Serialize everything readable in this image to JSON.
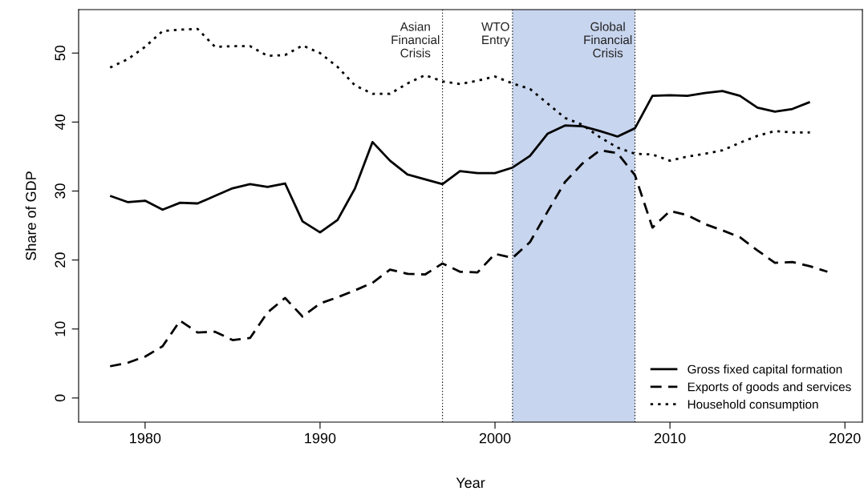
{
  "chart_data": {
    "type": "line",
    "xlabel": "Year",
    "ylabel": "Share of GDP",
    "xlim": [
      1976.2,
      2021.0
    ],
    "xticks": [
      1980,
      1990,
      2000,
      2010,
      2020
    ],
    "ylim": [
      -3.5,
      56.3
    ],
    "yticks": [
      0,
      10,
      20,
      30,
      40,
      50
    ],
    "grid": false,
    "legend": "bottom right",
    "x": [
      1978,
      1979,
      1980,
      1981,
      1982,
      1983,
      1984,
      1985,
      1986,
      1987,
      1988,
      1989,
      1990,
      1991,
      1992,
      1993,
      1994,
      1995,
      1996,
      1997,
      1998,
      1999,
      2000,
      2001,
      2002,
      2003,
      2004,
      2005,
      2006,
      2007,
      2008,
      2009,
      2010,
      2011,
      2012,
      2013,
      2014,
      2015,
      2016,
      2017,
      2018,
      2019
    ],
    "series": [
      {
        "name": "Gross fixed capital formation",
        "color": "#000000",
        "line_style": "solid",
        "values": [
          29.3,
          28.4,
          28.6,
          27.3,
          28.3,
          28.2,
          29.3,
          30.4,
          31.0,
          30.6,
          31.1,
          25.6,
          24.0,
          25.8,
          30.4,
          37.1,
          34.4,
          32.4,
          31.7,
          31.0,
          32.9,
          32.6,
          32.6,
          33.4,
          35.1,
          38.3,
          39.5,
          39.4,
          38.7,
          37.9,
          39.1,
          43.8,
          43.9,
          43.8,
          44.2,
          44.5,
          43.8,
          42.1,
          41.5,
          41.9,
          42.9,
          null
        ]
      },
      {
        "name": "Exports of goods and services",
        "color": "#000000",
        "line_style": "dashed",
        "values": [
          4.6,
          5.1,
          6.0,
          7.5,
          11.2,
          9.5,
          9.6,
          8.4,
          8.7,
          12.4,
          14.5,
          11.8,
          13.7,
          14.6,
          15.6,
          16.7,
          18.6,
          18.0,
          17.9,
          19.5,
          18.3,
          18.2,
          20.9,
          20.3,
          22.6,
          27.0,
          31.3,
          34.0,
          35.9,
          35.5,
          32.3,
          24.7,
          27.1,
          26.5,
          25.2,
          24.3,
          23.3,
          21.4,
          19.6,
          19.7,
          19.1,
          18.3
        ]
      },
      {
        "name": "Household consumption",
        "color": "#000000",
        "line_style": "dotted",
        "values": [
          47.9,
          49.1,
          50.9,
          53.2,
          53.4,
          53.5,
          50.9,
          51.0,
          51.0,
          49.6,
          49.7,
          51.1,
          50.0,
          48.0,
          45.3,
          44.1,
          44.1,
          45.6,
          46.8,
          45.9,
          45.5,
          46.0,
          46.6,
          45.6,
          44.8,
          42.7,
          40.6,
          39.6,
          37.8,
          36.3,
          35.4,
          35.3,
          34.4,
          35.0,
          35.4,
          35.9,
          37.0,
          38.0,
          38.7,
          38.5,
          38.5,
          null
        ]
      }
    ],
    "bands": [
      {
        "axis": "x",
        "from": 2001,
        "to": 2008,
        "color": "#c8d5ee"
      }
    ],
    "ref_lines": [
      {
        "axis": "x",
        "value": 1997,
        "label": "Asian\nFinancial\nCrisis",
        "line_style": "dotted",
        "color": "#000000"
      },
      {
        "axis": "x",
        "value": 2001,
        "label": "WTO\nEntry",
        "line_style": "dotted",
        "color": "#000000"
      },
      {
        "axis": "x",
        "value": 2008,
        "label": "Global\nFinancial\nCrisis",
        "line_style": "dotted",
        "color": "#000000"
      }
    ]
  }
}
